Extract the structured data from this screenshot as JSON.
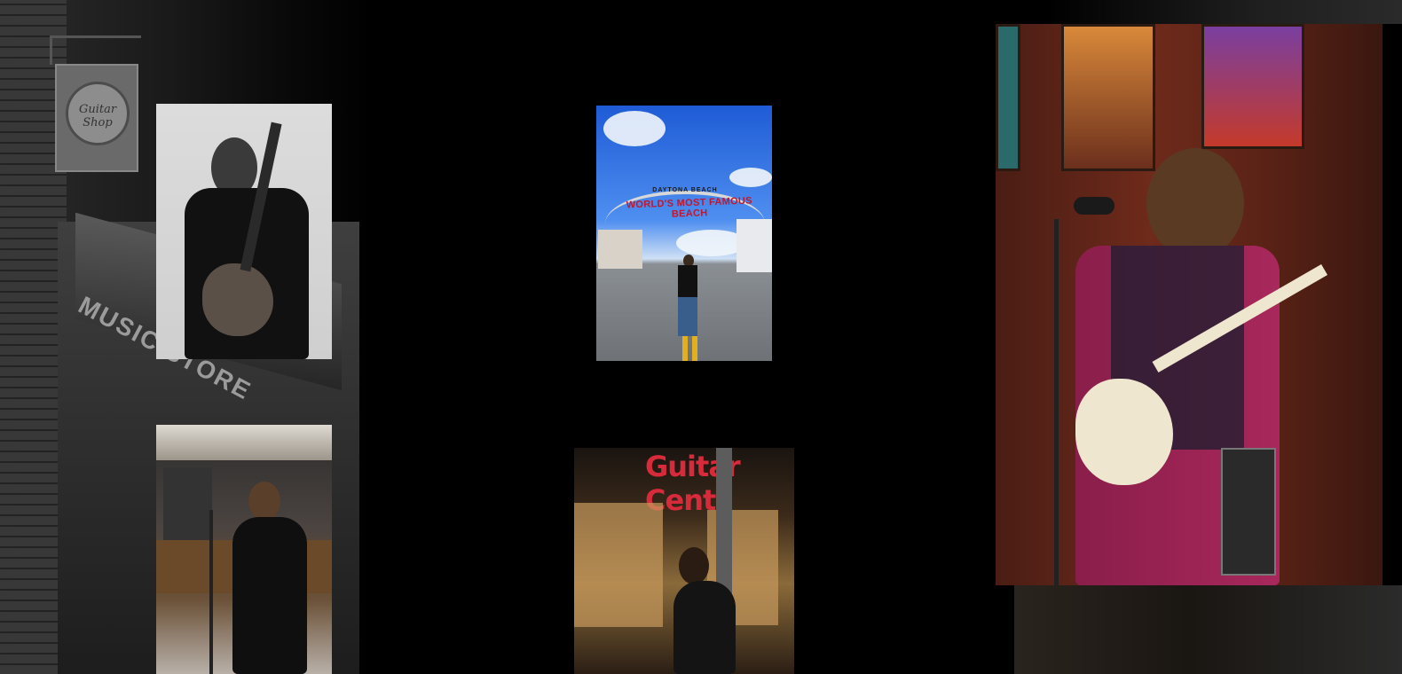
{
  "background": {
    "hanging_sign_text": "Guitar Shop",
    "storefront_sign_text": "MUSIC STORE"
  },
  "photos": [
    {
      "id": "guitarist-bw",
      "description_alt": "Black and white portrait of a guitarist holding an electric guitar"
    },
    {
      "id": "beach",
      "arch_top_text": "DAYTONA BEACH",
      "arch_main_text": "WORLD'S MOST FAMOUS BEACH"
    },
    {
      "id": "studio"
    },
    {
      "id": "guitar-center",
      "store_text": "Guitar Cent"
    },
    {
      "id": "stage"
    }
  ],
  "colors": {
    "page_background": "#000000",
    "arch_text_red": "#c4162a",
    "store_logo_red": "#d72a3a"
  }
}
